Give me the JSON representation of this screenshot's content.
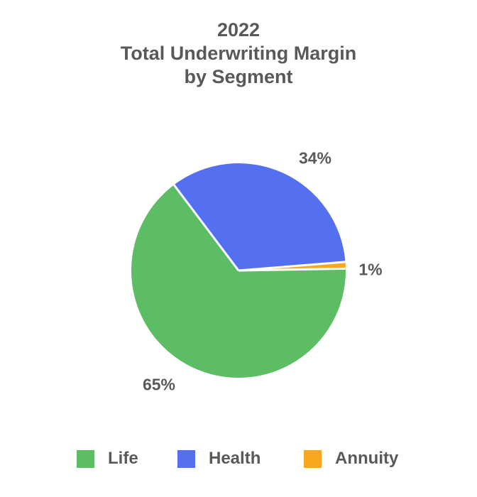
{
  "chart_data": {
    "type": "pie",
    "title": "2022 Total Underwriting Margin by Segment",
    "title_lines": [
      "2022",
      "Total Underwriting Margin",
      "by Segment"
    ],
    "segments": [
      {
        "label": "Life",
        "value": 65,
        "display": "65%",
        "color": "#5CBD65"
      },
      {
        "label": "Health",
        "value": 34,
        "display": "34%",
        "color": "#5470F1"
      },
      {
        "label": "Annuity",
        "value": 1,
        "display": "1%",
        "color": "#F8A81F"
      }
    ],
    "start_angle_clockwise_from_top_deg": 89,
    "legend_position": "bottom",
    "labels_position": "outside",
    "slice_border_color": "#FFFFFF",
    "text_color": "#58595B",
    "background_color": "#FFFFFF"
  }
}
